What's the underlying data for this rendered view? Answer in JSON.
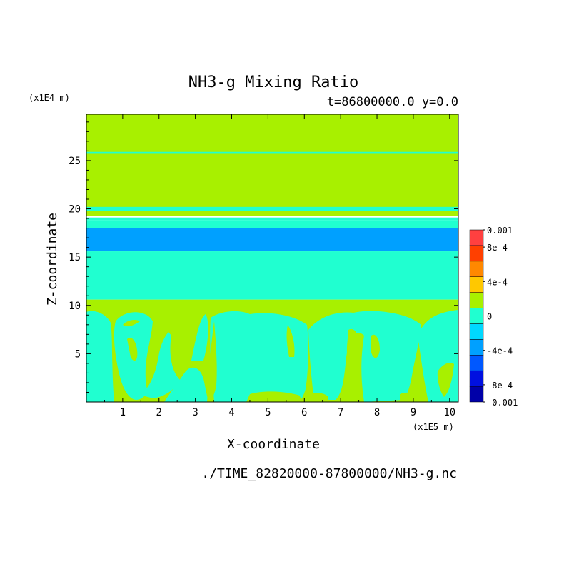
{
  "chart_data": {
    "type": "heatmap",
    "title": "NH3-g Mixing Ratio",
    "subtitle": "t=86800000.0 y=0.0",
    "xlabel": "X-coordinate",
    "ylabel": "Z-coordinate",
    "x_unit_label": "(x1E5 m)",
    "y_unit_label": "(x1E4 m)",
    "footer": "./TIME_82820000-87800000/NH3-g.nc",
    "xlim": [
      0,
      10.24
    ],
    "ylim": [
      0,
      29.8
    ],
    "x_ticks": [
      "1",
      "2",
      "3",
      "4",
      "5",
      "6",
      "7",
      "8",
      "9",
      "10"
    ],
    "y_ticks": [
      "5",
      "10",
      "15",
      "20",
      "25"
    ],
    "x_tick_values": [
      1,
      2,
      3,
      4,
      5,
      6,
      7,
      8,
      9,
      10
    ],
    "y_tick_values": [
      5,
      10,
      15,
      20,
      25
    ],
    "colorbar": {
      "min": -0.001,
      "max": 0.001,
      "labels": [
        {
          "text": "0.001",
          "value": 0.001
        },
        {
          "text": "8e-4",
          "value": 0.0008
        },
        {
          "text": "4e-4",
          "value": 0.0004
        },
        {
          "text": "0",
          "value": 0
        },
        {
          "text": "-4e-4",
          "value": -0.0004
        },
        {
          "text": "-8e-4",
          "value": -0.0008
        },
        {
          "text": "-0.001",
          "value": -0.001
        }
      ],
      "colors": [
        "#0000a8",
        "#0010e0",
        "#0058ff",
        "#00a0ff",
        "#00d8ff",
        "#20ffd0",
        "#a8f000",
        "#ffc800",
        "#ff8800",
        "#ff4000",
        "#ff4040"
      ]
    },
    "bands": [
      {
        "z0": 19.3,
        "z1": 29.8,
        "level": "zero"
      },
      {
        "z0": 25.7,
        "z1": 25.9,
        "level": "slightly-negative"
      },
      {
        "z0": 19.8,
        "z1": 20.2,
        "level": "slightly-negative"
      },
      {
        "z0": 18.8,
        "z1": 19.1,
        "level": "slightly-negative"
      },
      {
        "z0": 18.0,
        "z1": 18.8,
        "level": "slightly-negative"
      },
      {
        "z0": 15.6,
        "z1": 18.0,
        "level": "negative"
      },
      {
        "z0": 10.6,
        "z1": 15.6,
        "level": "slightly-negative"
      },
      {
        "z0": 0,
        "z1": 10.6,
        "level": "zero"
      }
    ],
    "grid": false
  }
}
